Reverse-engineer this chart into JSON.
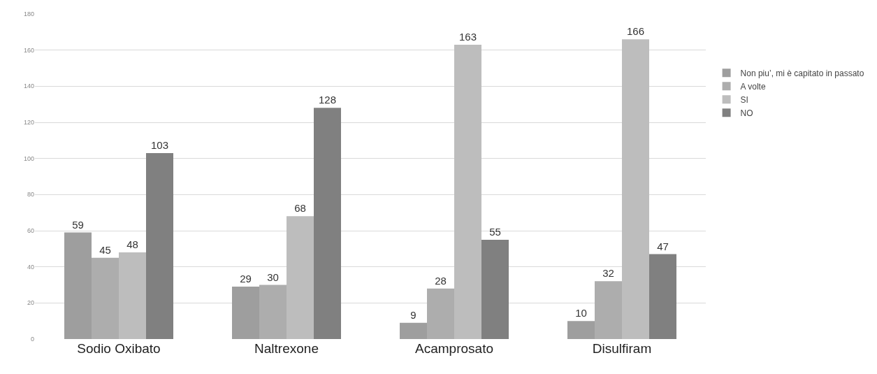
{
  "chart_data": {
    "type": "bar",
    "categories": [
      "Sodio Oxibato",
      "Naltrexone",
      "Acamprosato",
      "Disulfiram"
    ],
    "series": [
      {
        "name": "Non piu’, mi è capitato in passato",
        "color": "#9e9e9e",
        "values": [
          59,
          29,
          9,
          10
        ]
      },
      {
        "name": "A volte",
        "color": "#adadad",
        "values": [
          45,
          30,
          28,
          32
        ]
      },
      {
        "name": "SI",
        "color": "#bdbdbd",
        "values": [
          48,
          68,
          163,
          166
        ]
      },
      {
        "name": "NO",
        "color": "#808080",
        "values": [
          103,
          128,
          55,
          47
        ]
      }
    ],
    "ylim": [
      0,
      180
    ],
    "yticks": [
      0,
      20,
      40,
      60,
      80,
      100,
      120,
      140,
      160,
      180
    ],
    "grid": "y",
    "legend": "right",
    "data_labels": true
  }
}
